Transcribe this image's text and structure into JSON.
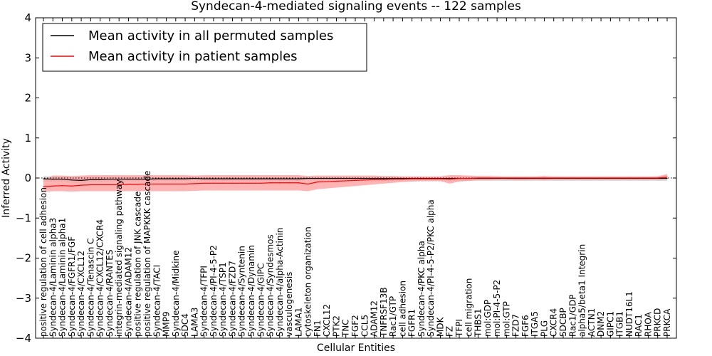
{
  "chart_data": {
    "type": "line",
    "title": "Syndecan-4-mediated signaling events -- 122 samples",
    "xlabel": "Cellular Entities",
    "ylabel": "Inferred Activity",
    "ylim": [
      -4,
      4
    ],
    "yticks": [
      "4",
      "3",
      "2",
      "1",
      "0",
      "−1",
      "−2",
      "−3",
      "−4"
    ],
    "grid": false,
    "legend_position": "top-left",
    "categories": [
      "positive regulation of cell adhesion",
      "Syndecan-4/Laminin alpha3",
      "Syndecan-4/Laminin alpha1",
      "Syndecan-4/FGFR1/FGF",
      "Syndecan-4/CXCL12",
      "Syndecan-4/Tenascin C",
      "Syndecan-4/CXCL12/CXCR4",
      "Syndecan-4/RANTES",
      "integrin-mediated signaling pathway",
      "Syndecan-4/ADAM12",
      "positive regulation of JNK cascade",
      "positive regulation of MAPKKK cascade",
      "Syndecan-4/TACI",
      "MMP9",
      "Syndecan-4/Midkine",
      "SDC4",
      "LAMA3",
      "Syndecan-4/TFPI",
      "Syndecan-4/PI-4-5-P2",
      "Syndecan-4/TSP1",
      "Syndecan-4/FZD7",
      "Syndecan-4/Syntenin",
      "Syndecan-4/Dynamin",
      "Syndecan-4/GIPC",
      "Syndecan-4/Syndesmos",
      "Syndecan-4/alpha-Actinin",
      "vasculogenesis",
      "LAMA1",
      "cytoskeleton organization",
      "FN1",
      "CXCL12",
      "PTK2",
      "TNC",
      "FGF2",
      "CCL5",
      "ADAM12",
      "TNFRSF13B",
      "Rac1/GTP",
      "cell adhesion",
      "FGFR1",
      "Syndecan-4/PKC alpha",
      "Syndecan-4/PI-4-5-P2/PKC alpha",
      "MDK",
      "FZ",
      "TFPI",
      "cell migration",
      "THBS1",
      "mol:GDP",
      "mol:PI-4-5-P2",
      "mol:GTP",
      "FZD7",
      "FGF6",
      "ITGA5",
      "PLG",
      "CXCR4",
      "SDCBP",
      "Rac1/GDP",
      "alpha5/beta1 Integrin",
      "ACTN1",
      "DNM2",
      "GIPC1",
      "ITGB1",
      "NUDT16L1",
      "RAC1",
      "RHOA",
      "PRKCD",
      "PRKCA"
    ],
    "series": [
      {
        "name": "Mean activity in all permuted samples",
        "color": "#000000",
        "values": [
          -0.02,
          -0.03,
          -0.03,
          -0.05,
          -0.06,
          -0.04,
          -0.04,
          -0.03,
          -0.03,
          -0.03,
          -0.03,
          -0.03,
          -0.02,
          -0.02,
          -0.02,
          -0.02,
          -0.01,
          -0.02,
          -0.02,
          -0.02,
          -0.02,
          -0.02,
          -0.02,
          -0.02,
          -0.02,
          -0.02,
          -0.02,
          -0.02,
          -0.01,
          -0.01,
          -0.01,
          -0.01,
          -0.01,
          -0.01,
          -0.01,
          -0.01,
          -0.01,
          -0.01,
          -0.01,
          -0.01,
          -0.01,
          -0.01,
          -0.01,
          -0.01,
          -0.01,
          -0.01,
          -0.01,
          -0.01,
          -0.01,
          -0.01,
          -0.01,
          -0.01,
          -0.01,
          -0.01,
          -0.01,
          -0.01,
          -0.01,
          -0.01,
          -0.01,
          -0.01,
          -0.01,
          -0.01,
          -0.01,
          -0.01,
          -0.01,
          -0.01,
          -0.01
        ],
        "band_lower": [
          -0.08,
          -0.09,
          -0.09,
          -0.12,
          -0.13,
          -0.1,
          -0.1,
          -0.09,
          -0.09,
          -0.08,
          -0.08,
          -0.08,
          -0.07,
          -0.07,
          -0.07,
          -0.07,
          -0.06,
          -0.07,
          -0.07,
          -0.07,
          -0.07,
          -0.07,
          -0.07,
          -0.07,
          -0.07,
          -0.07,
          -0.07,
          -0.07,
          -0.06,
          -0.06,
          -0.06,
          -0.06,
          -0.06,
          -0.06,
          -0.06,
          -0.06,
          -0.06,
          -0.06,
          -0.06,
          -0.06,
          -0.06,
          -0.06,
          -0.06,
          -0.07,
          -0.07,
          -0.07,
          -0.07,
          -0.07,
          -0.07,
          -0.07,
          -0.07,
          -0.07,
          -0.07,
          -0.07,
          -0.07,
          -0.07,
          -0.07,
          -0.07,
          -0.07,
          -0.07,
          -0.07,
          -0.07,
          -0.07,
          -0.07,
          -0.07,
          -0.07,
          -0.07
        ],
        "band_upper": [
          0.05,
          0.04,
          0.03,
          0.02,
          0.02,
          0.03,
          0.03,
          0.03,
          0.03,
          0.03,
          0.03,
          0.03,
          0.03,
          0.03,
          0.03,
          0.03,
          0.03,
          0.03,
          0.03,
          0.03,
          0.03,
          0.03,
          0.03,
          0.03,
          0.03,
          0.03,
          0.03,
          0.03,
          0.03,
          0.03,
          0.03,
          0.03,
          0.03,
          0.03,
          0.03,
          0.03,
          0.03,
          0.03,
          0.03,
          0.03,
          0.03,
          0.03,
          0.03,
          0.04,
          0.04,
          0.04,
          0.04,
          0.04,
          0.04,
          0.04,
          0.04,
          0.04,
          0.04,
          0.04,
          0.04,
          0.04,
          0.04,
          0.04,
          0.04,
          0.04,
          0.04,
          0.04,
          0.04,
          0.04,
          0.04,
          0.04,
          0.04
        ]
      },
      {
        "name": "Mean activity in patient samples",
        "color": "#ff0000",
        "values": [
          -0.22,
          -0.2,
          -0.19,
          -0.2,
          -0.18,
          -0.17,
          -0.17,
          -0.17,
          -0.17,
          -0.16,
          -0.16,
          -0.15,
          -0.15,
          -0.15,
          -0.15,
          -0.15,
          -0.14,
          -0.13,
          -0.13,
          -0.13,
          -0.13,
          -0.13,
          -0.13,
          -0.13,
          -0.12,
          -0.12,
          -0.12,
          -0.12,
          -0.15,
          -0.1,
          -0.09,
          -0.08,
          -0.07,
          -0.06,
          -0.05,
          -0.04,
          -0.04,
          -0.03,
          -0.03,
          -0.02,
          -0.02,
          -0.02,
          -0.02,
          -0.03,
          -0.01,
          -0.01,
          0.0,
          0.0,
          0.0,
          0.0,
          0.0,
          0.0,
          0.0,
          0.0,
          0.0,
          0.0,
          0.0,
          0.0,
          0.0,
          0.0,
          0.0,
          0.0,
          0.0,
          0.0,
          0.0,
          0.0,
          0.02
        ],
        "band_lower": [
          -0.35,
          -0.33,
          -0.33,
          -0.34,
          -0.33,
          -0.33,
          -0.33,
          -0.33,
          -0.33,
          -0.33,
          -0.33,
          -0.33,
          -0.33,
          -0.33,
          -0.33,
          -0.33,
          -0.32,
          -0.31,
          -0.31,
          -0.31,
          -0.31,
          -0.31,
          -0.31,
          -0.31,
          -0.31,
          -0.31,
          -0.31,
          -0.31,
          -0.33,
          -0.28,
          -0.26,
          -0.24,
          -0.22,
          -0.2,
          -0.18,
          -0.16,
          -0.14,
          -0.12,
          -0.1,
          -0.09,
          -0.08,
          -0.08,
          -0.08,
          -0.14,
          -0.09,
          -0.07,
          -0.05,
          -0.05,
          -0.04,
          -0.04,
          -0.05,
          -0.05,
          -0.04,
          -0.05,
          -0.04,
          -0.04,
          -0.04,
          -0.04,
          -0.04,
          -0.04,
          -0.04,
          -0.04,
          -0.04,
          -0.04,
          -0.04,
          -0.04,
          -0.03
        ],
        "band_upper": [
          -0.04,
          0.06,
          0.06,
          0.05,
          0.06,
          0.07,
          0.07,
          0.07,
          0.07,
          0.07,
          0.07,
          0.07,
          0.07,
          0.07,
          0.07,
          0.07,
          0.06,
          0.07,
          0.07,
          0.07,
          0.07,
          0.07,
          0.07,
          0.07,
          0.07,
          0.07,
          0.07,
          0.07,
          0.05,
          0.06,
          0.06,
          0.06,
          0.06,
          0.06,
          0.06,
          0.06,
          0.05,
          0.05,
          0.04,
          0.04,
          0.04,
          0.04,
          0.04,
          0.07,
          0.07,
          0.06,
          0.05,
          0.05,
          0.04,
          0.03,
          0.03,
          0.03,
          0.03,
          0.05,
          0.03,
          0.03,
          0.03,
          0.03,
          0.03,
          0.03,
          0.03,
          0.03,
          0.03,
          0.03,
          0.03,
          0.04,
          0.1
        ]
      }
    ],
    "colors": {
      "permuted_band": "#d3d3d3",
      "patient_band": "#ff9999",
      "zero_line": "#000000"
    }
  }
}
